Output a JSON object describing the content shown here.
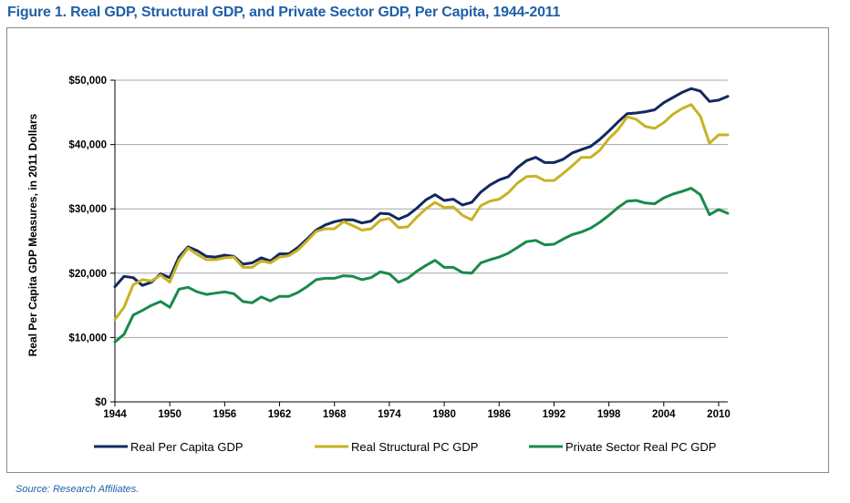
{
  "figure": {
    "title": "Figure 1. Real GDP, Structural GDP, and Private Sector GDP, Per Capita, 1944-2011",
    "source": "Source: Research Affiliates."
  },
  "chart_data": {
    "type": "line",
    "title": "",
    "xlabel": "",
    "ylabel": "Real Per Capita GDP Measures, in 2011 Dollars",
    "xlim": [
      1944,
      2011
    ],
    "ylim": [
      0,
      50000
    ],
    "x_ticks": [
      "1944",
      "1950",
      "1956",
      "1962",
      "1968",
      "1974",
      "1980",
      "1986",
      "1992",
      "1998",
      "2004",
      "2010"
    ],
    "y_ticks": [
      "$0",
      "$10,000",
      "$20,000",
      "$30,000",
      "$40,000",
      "$50,000"
    ],
    "grid": "horizontal",
    "legend_position": "bottom",
    "x": [
      1944,
      1945,
      1946,
      1947,
      1948,
      1949,
      1950,
      1951,
      1952,
      1953,
      1954,
      1955,
      1956,
      1957,
      1958,
      1959,
      1960,
      1961,
      1962,
      1963,
      1964,
      1965,
      1966,
      1967,
      1968,
      1969,
      1970,
      1971,
      1972,
      1973,
      1974,
      1975,
      1976,
      1977,
      1978,
      1979,
      1980,
      1981,
      1982,
      1983,
      1984,
      1985,
      1986,
      1987,
      1988,
      1989,
      1990,
      1991,
      1992,
      1993,
      1994,
      1995,
      1996,
      1997,
      1998,
      1999,
      2000,
      2001,
      2002,
      2003,
      2004,
      2005,
      2006,
      2007,
      2008,
      2009,
      2010,
      2011
    ],
    "series": [
      {
        "name": "Real Per Capita GDP",
        "color": "#13285e",
        "values": [
          17900,
          19500,
          19300,
          18100,
          18600,
          19900,
          19300,
          22500,
          24100,
          23500,
          22600,
          22500,
          22800,
          22600,
          21400,
          21600,
          22400,
          21900,
          23000,
          23000,
          24000,
          25300,
          26700,
          27500,
          28000,
          28300,
          28300,
          27800,
          28100,
          29300,
          29200,
          28400,
          29000,
          30100,
          31400,
          32200,
          31300,
          31500,
          30600,
          31000,
          32600,
          33700,
          34500,
          35000,
          36400,
          37500,
          38000,
          37200,
          37200,
          37700,
          38700,
          39200,
          39700,
          40800,
          42100,
          43500,
          44800,
          44900,
          45100,
          45400,
          46500,
          47300,
          48100,
          48700,
          48300,
          46700,
          46900,
          47500
        ]
      },
      {
        "name": "Real Structural PC GDP",
        "color": "#c8b224",
        "values": [
          12800,
          14700,
          18200,
          19000,
          18800,
          19700,
          18600,
          22000,
          23900,
          22900,
          22100,
          22100,
          22400,
          22500,
          20900,
          20900,
          21900,
          21600,
          22500,
          22700,
          23600,
          25000,
          26500,
          26900,
          26900,
          28000,
          27400,
          26700,
          26900,
          28200,
          28500,
          27100,
          27200,
          28700,
          30000,
          31000,
          30200,
          30300,
          29000,
          28300,
          30500,
          31200,
          31500,
          32500,
          34000,
          35000,
          35100,
          34400,
          34400,
          35500,
          36700,
          38000,
          38000,
          39100,
          40900,
          42300,
          44300,
          43900,
          42800,
          42500,
          43400,
          44700,
          45600,
          46200,
          44400,
          40200,
          41500,
          41500
        ]
      },
      {
        "name": "Private Sector Real PC GDP",
        "color": "#1a8a4a",
        "values": [
          9300,
          10500,
          13500,
          14200,
          15000,
          15600,
          14700,
          17500,
          17800,
          17100,
          16700,
          16900,
          17100,
          16800,
          15600,
          15400,
          16300,
          15700,
          16400,
          16400,
          17000,
          17900,
          19000,
          19200,
          19200,
          19600,
          19500,
          19000,
          19300,
          20200,
          19900,
          18600,
          19200,
          20300,
          21200,
          22000,
          20900,
          20900,
          20100,
          20000,
          21600,
          22100,
          22500,
          23100,
          24000,
          24900,
          25100,
          24400,
          24500,
          25300,
          26000,
          26400,
          27000,
          27900,
          29000,
          30200,
          31200,
          31300,
          30900,
          30800,
          31700,
          32300,
          32700,
          33200,
          32200,
          29100,
          29900,
          29300
        ]
      }
    ]
  }
}
